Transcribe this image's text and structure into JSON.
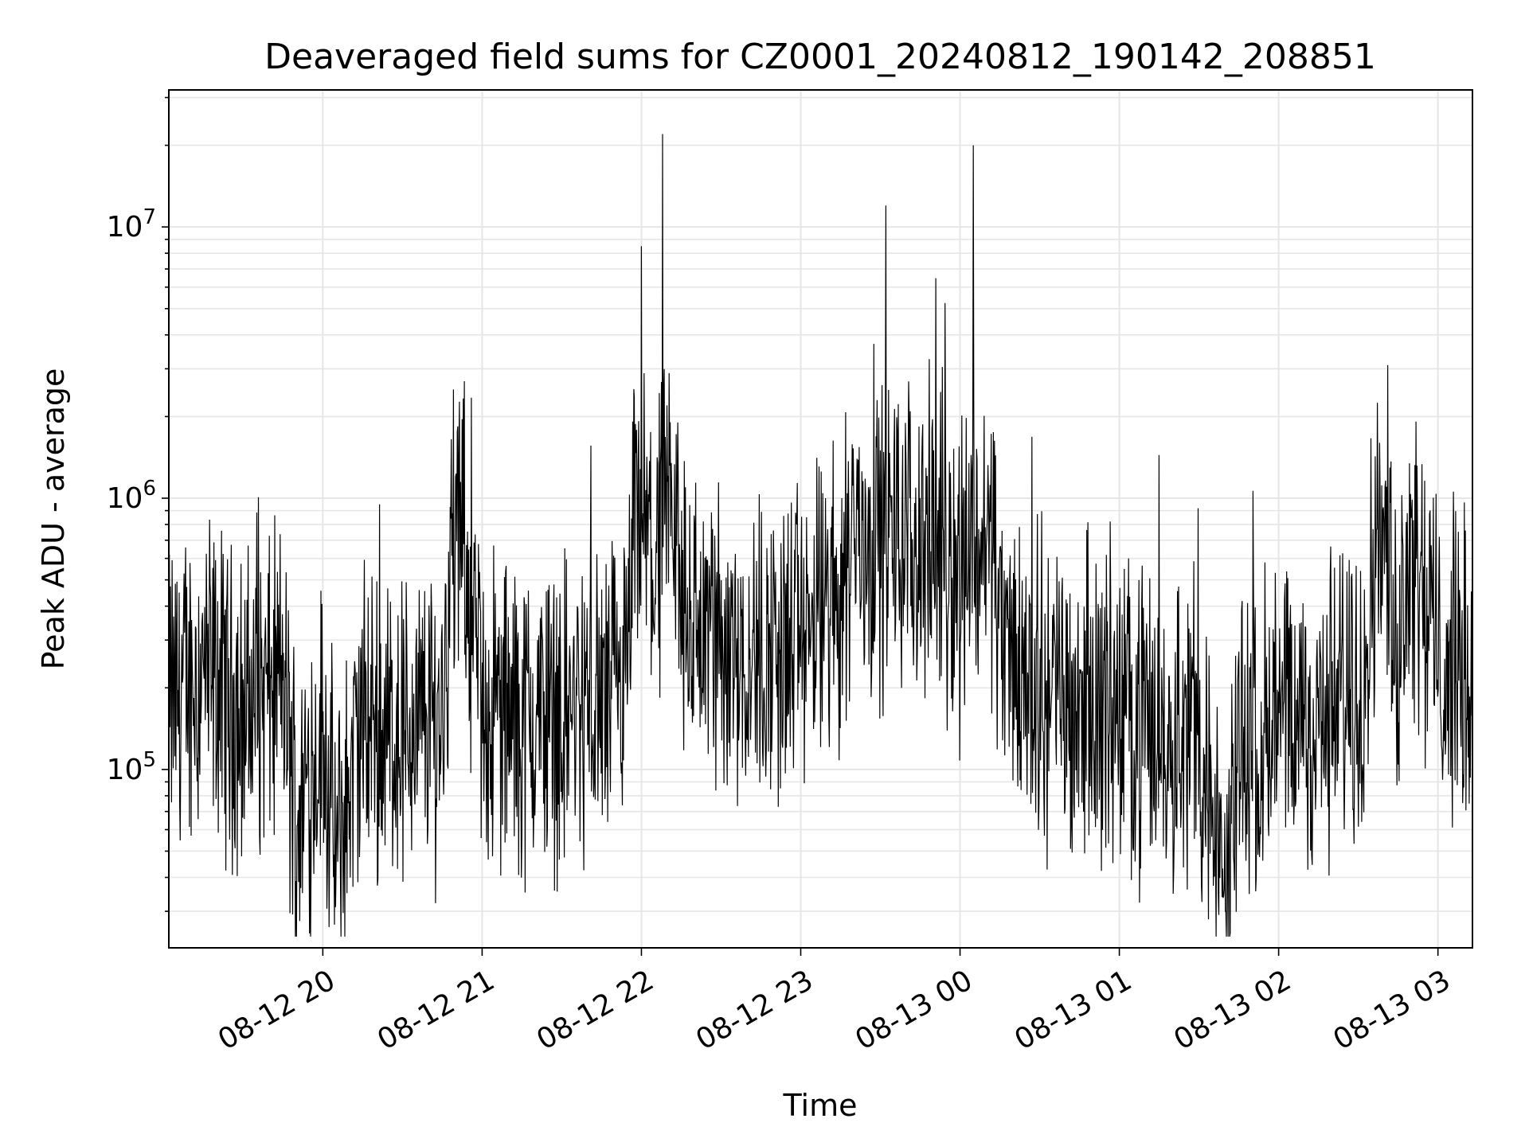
{
  "chart_data": {
    "type": "line",
    "title": "Deaveraged field sums for CZ0001_20240812_190142_208851",
    "xlabel": "Time",
    "ylabel": "Peak ADU - average",
    "yscale": "log",
    "ylim": [
      22000,
      32000000
    ],
    "xlim": [
      "2024-08-12 19:02",
      "2024-08-13 03:13"
    ],
    "grid": true,
    "line_color": "#000000",
    "x_ticks": [
      "08-12 20",
      "08-12 21",
      "08-12 22",
      "08-12 23",
      "08-13 00",
      "08-13 01",
      "08-13 02",
      "08-13 03"
    ],
    "y_ticks": [
      {
        "base": "10",
        "exp": "5",
        "value": 100000
      },
      {
        "base": "10",
        "exp": "6",
        "value": 1000000
      },
      {
        "base": "10",
        "exp": "7",
        "value": 10000000
      }
    ],
    "series": [
      {
        "values_note_free": true,
        "points": [
          [
            "2024-08-12 19:02",
            180000
          ],
          [
            "2024-08-12 19:15",
            230000
          ],
          [
            "2024-08-12 19:30",
            160000
          ],
          [
            "2024-08-12 19:45",
            210000
          ],
          [
            "2024-08-12 19:50",
            65000
          ],
          [
            "2024-08-12 20:00",
            140000
          ],
          [
            "2024-08-12 20:05",
            45000
          ],
          [
            "2024-08-12 20:15",
            150000
          ],
          [
            "2024-08-12 20:30",
            140000
          ],
          [
            "2024-08-12 20:45",
            160000
          ],
          [
            "2024-08-12 20:50",
            1200000
          ],
          [
            "2024-08-12 21:00",
            170000
          ],
          [
            "2024-08-12 21:15",
            150000
          ],
          [
            "2024-08-12 21:30",
            160000
          ],
          [
            "2024-08-12 21:45",
            170000
          ],
          [
            "2024-08-12 21:55",
            200000
          ],
          [
            "2024-08-12 22:00",
            8500000
          ],
          [
            "2024-08-12 22:05",
            400000
          ],
          [
            "2024-08-12 22:08",
            22000000
          ],
          [
            "2024-08-12 22:15",
            350000
          ],
          [
            "2024-08-12 22:30",
            300000
          ],
          [
            "2024-08-12 22:45",
            260000
          ],
          [
            "2024-08-12 23:00",
            300000
          ],
          [
            "2024-08-12 23:15",
            450000
          ],
          [
            "2024-08-12 23:20",
            1000000
          ],
          [
            "2024-08-12 23:30",
            1500000
          ],
          [
            "2024-08-12 23:32",
            12000000
          ],
          [
            "2024-08-12 23:45",
            1000000
          ],
          [
            "2024-08-13 00:00",
            500000
          ],
          [
            "2024-08-13 00:05",
            20000000
          ],
          [
            "2024-08-13 00:15",
            300000
          ],
          [
            "2024-08-13 00:30",
            200000
          ],
          [
            "2024-08-13 00:45",
            180000
          ],
          [
            "2024-08-13 01:00",
            160000
          ],
          [
            "2024-08-13 01:15",
            140000
          ],
          [
            "2024-08-13 01:30",
            130000
          ],
          [
            "2024-08-13 01:40",
            30000
          ],
          [
            "2024-08-13 01:45",
            130000
          ],
          [
            "2024-08-13 02:00",
            140000
          ],
          [
            "2024-08-13 02:15",
            150000
          ],
          [
            "2024-08-13 02:30",
            200000
          ],
          [
            "2024-08-13 02:40",
            1100000
          ],
          [
            "2024-08-13 02:45",
            260000
          ],
          [
            "2024-08-13 02:50",
            850000
          ],
          [
            "2024-08-13 03:00",
            250000
          ],
          [
            "2024-08-13 03:13",
            220000
          ]
        ]
      }
    ]
  }
}
